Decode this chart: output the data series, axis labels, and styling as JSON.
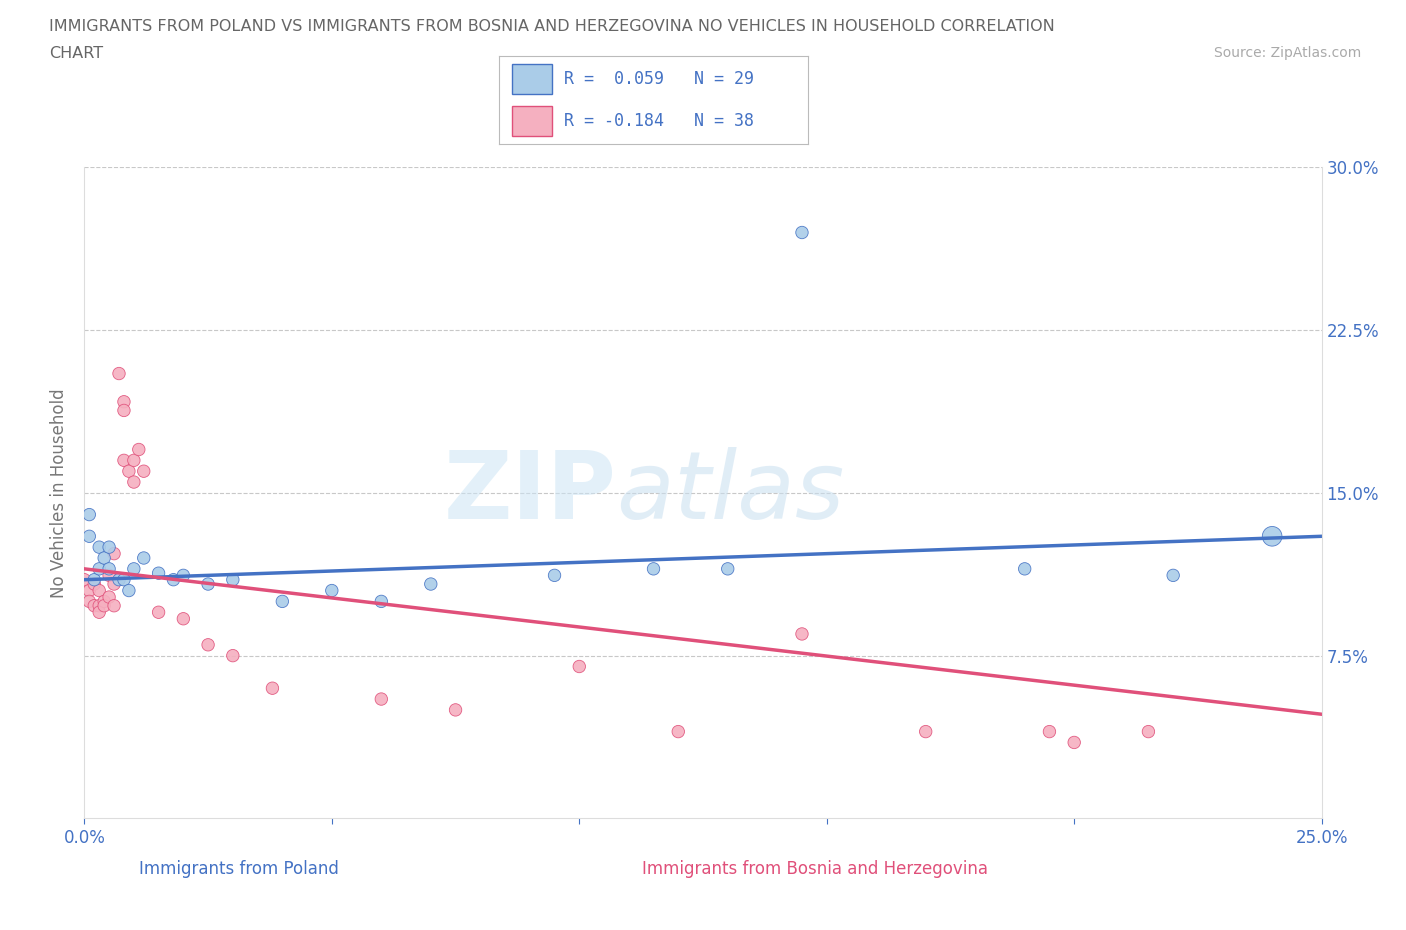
{
  "title_line1": "IMMIGRANTS FROM POLAND VS IMMIGRANTS FROM BOSNIA AND HERZEGOVINA NO VEHICLES IN HOUSEHOLD CORRELATION",
  "title_line2": "CHART",
  "source": "Source: ZipAtlas.com",
  "ylabel": "No Vehicles in Household",
  "xlabel_poland": "Immigrants from Poland",
  "xlabel_bosnia": "Immigrants from Bosnia and Herzegovina",
  "poland_color": "#aacce8",
  "poland_line_color": "#4472c4",
  "bosnia_color": "#f5b0c0",
  "bosnia_line_color": "#e0507a",
  "watermark_zip": "ZIP",
  "watermark_atlas": "atlas",
  "R_poland": 0.059,
  "N_poland": 29,
  "R_bosnia": -0.184,
  "N_bosnia": 38,
  "xlim": [
    0.0,
    0.25
  ],
  "ylim": [
    0.0,
    0.3
  ],
  "yticks": [
    0.0,
    0.075,
    0.15,
    0.225,
    0.3
  ],
  "ytick_labels": [
    "",
    "7.5%",
    "15.0%",
    "22.5%",
    "30.0%"
  ],
  "xticks": [
    0.0,
    0.05,
    0.1,
    0.15,
    0.2,
    0.25
  ],
  "xtick_labels": [
    "0.0%",
    "",
    "",
    "",
    "",
    "25.0%"
  ],
  "poland_x": [
    0.001,
    0.001,
    0.002,
    0.003,
    0.003,
    0.004,
    0.005,
    0.005,
    0.007,
    0.008,
    0.009,
    0.01,
    0.012,
    0.015,
    0.018,
    0.02,
    0.025,
    0.03,
    0.04,
    0.05,
    0.06,
    0.07,
    0.095,
    0.115,
    0.13,
    0.145,
    0.19,
    0.22,
    0.24
  ],
  "poland_y": [
    0.13,
    0.14,
    0.11,
    0.115,
    0.125,
    0.12,
    0.115,
    0.125,
    0.11,
    0.11,
    0.105,
    0.115,
    0.12,
    0.113,
    0.11,
    0.112,
    0.108,
    0.11,
    0.1,
    0.105,
    0.1,
    0.108,
    0.112,
    0.115,
    0.115,
    0.27,
    0.115,
    0.112,
    0.13
  ],
  "poland_sizes": [
    80,
    80,
    80,
    80,
    80,
    80,
    80,
    80,
    80,
    80,
    80,
    80,
    80,
    80,
    80,
    80,
    80,
    80,
    80,
    80,
    80,
    80,
    80,
    80,
    80,
    80,
    80,
    80,
    200
  ],
  "bosnia_x": [
    0.0,
    0.001,
    0.001,
    0.002,
    0.002,
    0.003,
    0.003,
    0.003,
    0.004,
    0.004,
    0.005,
    0.005,
    0.006,
    0.006,
    0.006,
    0.007,
    0.008,
    0.008,
    0.008,
    0.009,
    0.01,
    0.01,
    0.011,
    0.012,
    0.015,
    0.02,
    0.025,
    0.03,
    0.038,
    0.06,
    0.075,
    0.1,
    0.12,
    0.145,
    0.17,
    0.195,
    0.2,
    0.215
  ],
  "bosnia_y": [
    0.11,
    0.105,
    0.1,
    0.108,
    0.098,
    0.105,
    0.098,
    0.095,
    0.1,
    0.098,
    0.112,
    0.102,
    0.122,
    0.108,
    0.098,
    0.205,
    0.192,
    0.188,
    0.165,
    0.16,
    0.165,
    0.155,
    0.17,
    0.16,
    0.095,
    0.092,
    0.08,
    0.075,
    0.06,
    0.055,
    0.05,
    0.07,
    0.04,
    0.085,
    0.04,
    0.04,
    0.035,
    0.04
  ],
  "bosnia_sizes": [
    80,
    80,
    80,
    80,
    80,
    80,
    80,
    80,
    80,
    80,
    80,
    80,
    80,
    80,
    80,
    80,
    80,
    80,
    80,
    80,
    80,
    80,
    80,
    80,
    80,
    80,
    80,
    80,
    80,
    80,
    80,
    80,
    80,
    80,
    80,
    80,
    80,
    80
  ],
  "trend_poland_x0": 0.0,
  "trend_poland_y0": 0.11,
  "trend_poland_x1": 0.25,
  "trend_poland_y1": 0.13,
  "trend_bosnia_x0": 0.0,
  "trend_bosnia_y0": 0.115,
  "trend_bosnia_x1": 0.25,
  "trend_bosnia_y1": 0.048,
  "bg_color": "#ffffff",
  "grid_color": "#c8c8c8",
  "axis_color": "#4472c4",
  "title_color": "#666666",
  "source_color": "#aaaaaa"
}
